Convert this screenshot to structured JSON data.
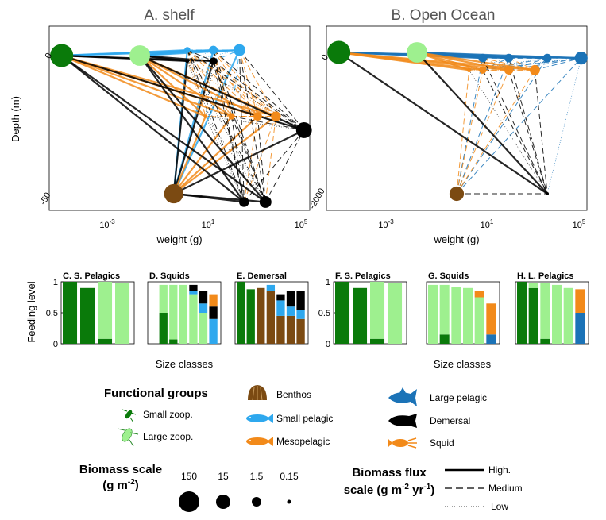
{
  "colors": {
    "small_zoop": "#0a7a0a",
    "large_zoop": "#9ef08f",
    "benthos": "#7b4a12",
    "small_pelagic": "#2ea8ee",
    "mesopelagic": "#f28a1a",
    "large_pelagic": "#1b73b7",
    "demersal": "#000000",
    "squid": "#f28a1a"
  },
  "chart_data": [
    {
      "type": "scatter",
      "title": "A. shelf",
      "xlabel": "weight (g)",
      "ylabel": "Depth (m)",
      "xscale": "log",
      "xlim": [
        1e-05,
        100000
      ],
      "xticks": [
        "10-3",
        "101",
        "105"
      ],
      "yticks": [
        "0",
        "-50"
      ],
      "ylim": [
        -55,
        5
      ],
      "nodes": [
        {
          "group": "small_zoop",
          "weight": 3e-05,
          "depth": 0,
          "biomass": 150
        },
        {
          "group": "large_zoop",
          "weight": 0.03,
          "depth": 0,
          "biomass": 100
        },
        {
          "group": "small_pelagic",
          "weight": 2,
          "depth": 2,
          "biomass": 1.5
        },
        {
          "group": "small_pelagic",
          "weight": 20,
          "depth": 2,
          "biomass": 5
        },
        {
          "group": "small_pelagic",
          "weight": 200,
          "depth": 2,
          "biomass": 15
        },
        {
          "group": "demersal",
          "weight": 2,
          "depth": -2,
          "biomass": 0.3
        },
        {
          "group": "demersal",
          "weight": 20,
          "depth": -2,
          "biomass": 3
        },
        {
          "group": "benthos",
          "weight": 0.6,
          "depth": -50,
          "biomass": 80
        },
        {
          "group": "squid",
          "weight": 10,
          "depth": -22,
          "biomass": 0.3
        },
        {
          "group": "squid",
          "weight": 100,
          "depth": -22,
          "biomass": 2
        },
        {
          "group": "squid",
          "weight": 1000,
          "depth": -22,
          "biomass": 5
        },
        {
          "group": "squid",
          "weight": 5000,
          "depth": -22,
          "biomass": 8
        },
        {
          "group": "demersal",
          "weight": 60000,
          "depth": -27,
          "biomass": 40
        },
        {
          "group": "demersal",
          "weight": 300,
          "depth": -53,
          "biomass": 8
        },
        {
          "group": "demersal",
          "weight": 2000,
          "depth": -53,
          "biomass": 15
        }
      ]
    },
    {
      "type": "scatter",
      "title": "B. Open Ocean",
      "xlabel": "weight (g)",
      "ylabel": "",
      "xscale": "log",
      "xlim": [
        1e-05,
        100000
      ],
      "xticks": [
        "10-3",
        "101",
        "105"
      ],
      "yticks": [
        "0",
        "-2000"
      ],
      "ylim": [
        -2200,
        200
      ],
      "nodes": [
        {
          "group": "small_zoop",
          "weight": 3e-05,
          "depth": 0,
          "biomass": 150
        },
        {
          "group": "large_zoop",
          "weight": 0.03,
          "depth": 0,
          "biomass": 100
        },
        {
          "group": "large_pelagic",
          "weight": 10,
          "depth": -80,
          "biomass": 5
        },
        {
          "group": "large_pelagic",
          "weight": 100,
          "depth": -80,
          "biomass": 5
        },
        {
          "group": "large_pelagic",
          "weight": 3000,
          "depth": -80,
          "biomass": 5
        },
        {
          "group": "large_pelagic",
          "weight": 60000,
          "depth": -80,
          "biomass": 20
        },
        {
          "group": "mesopelagic",
          "weight": 3,
          "depth": -250,
          "biomass": 0.5
        },
        {
          "group": "mesopelagic",
          "weight": 10,
          "depth": -250,
          "biomass": 3
        },
        {
          "group": "mesopelagic",
          "weight": 100,
          "depth": -250,
          "biomass": 6
        },
        {
          "group": "mesopelagic",
          "weight": 1000,
          "depth": -250,
          "biomass": 9
        },
        {
          "group": "benthos",
          "weight": 1,
          "depth": -2000,
          "biomass": 30
        },
        {
          "group": "demersal",
          "weight": 3000,
          "depth": -2000,
          "biomass": 0.15
        }
      ]
    },
    {
      "type": "bar",
      "title": "C. S. Pelagics",
      "stacked": true,
      "xlabel": "Size classes",
      "ylabel": "Feeding level",
      "yticks": [
        "1",
        "0.5",
        "0"
      ],
      "ylim": [
        0,
        1
      ],
      "series_colors": [
        "small_zoop",
        "large_zoop"
      ],
      "bars": [
        [
          1.0,
          0.0
        ],
        [
          0.9,
          0.0
        ],
        [
          0.08,
          0.92
        ],
        [
          0.0,
          0.98
        ]
      ]
    },
    {
      "type": "bar",
      "title": "D. Squids",
      "stacked": true,
      "ylim": [
        0,
        1
      ],
      "series_colors": [
        "small_zoop",
        "large_zoop",
        "small_pelagic",
        "demersal",
        "squid"
      ],
      "bars": [
        [
          0.0,
          0.0,
          0.0,
          0.0,
          0.0
        ],
        [
          0.5,
          0.45,
          0.0,
          0.0,
          0.0
        ],
        [
          0.07,
          0.88,
          0.0,
          0.0,
          0.0
        ],
        [
          0.0,
          0.95,
          0.0,
          0.0,
          0.0
        ],
        [
          0.0,
          0.8,
          0.05,
          0.1,
          0.0
        ],
        [
          0.0,
          0.5,
          0.15,
          0.2,
          0.0
        ],
        [
          0.0,
          0.0,
          0.4,
          0.2,
          0.2
        ]
      ]
    },
    {
      "type": "bar",
      "title": "E. Demersal",
      "stacked": true,
      "ylim": [
        0,
        1
      ],
      "series_colors": [
        "small_zoop",
        "large_zoop",
        "benthos",
        "small_pelagic",
        "demersal"
      ],
      "bars": [
        [
          1.0,
          0.0,
          0.0,
          0.0,
          0.0
        ],
        [
          0.88,
          0.0,
          0.0,
          0.0,
          0.0
        ],
        [
          0.0,
          0.0,
          0.9,
          0.0,
          0.0
        ],
        [
          0.0,
          0.0,
          0.85,
          0.1,
          0.0
        ],
        [
          0.0,
          0.0,
          0.45,
          0.25,
          0.1
        ],
        [
          0.0,
          0.0,
          0.45,
          0.15,
          0.25
        ],
        [
          0.0,
          0.0,
          0.4,
          0.15,
          0.3
        ]
      ]
    },
    {
      "type": "bar",
      "title": "F. S. Pelagics",
      "stacked": true,
      "ylim": [
        0,
        1
      ],
      "series_colors": [
        "small_zoop",
        "large_zoop"
      ],
      "bars": [
        [
          1.0,
          0.0
        ],
        [
          0.9,
          0.0
        ],
        [
          0.08,
          0.92
        ],
        [
          0.0,
          0.98
        ]
      ]
    },
    {
      "type": "bar",
      "title": "G. Squids",
      "stacked": true,
      "ylim": [
        0,
        1
      ],
      "series_colors": [
        "small_zoop",
        "large_zoop",
        "large_pelagic",
        "mesopelagic"
      ],
      "bars": [
        [
          0.0,
          0.95,
          0.0,
          0.0
        ],
        [
          0.15,
          0.8,
          0.0,
          0.0
        ],
        [
          0.0,
          0.92,
          0.0,
          0.0
        ],
        [
          0.0,
          0.9,
          0.0,
          0.0
        ],
        [
          0.0,
          0.75,
          0.0,
          0.1
        ],
        [
          0.0,
          0.0,
          0.15,
          0.5
        ]
      ]
    },
    {
      "type": "bar",
      "title": "H. L. Pelagics",
      "stacked": true,
      "ylim": [
        0,
        1
      ],
      "series_colors": [
        "small_zoop",
        "large_zoop",
        "large_pelagic",
        "mesopelagic"
      ],
      "bars": [
        [
          1.0,
          0.0,
          0.0,
          0.0
        ],
        [
          0.9,
          0.08,
          0.0,
          0.0
        ],
        [
          0.08,
          0.9,
          0.0,
          0.0
        ],
        [
          0.0,
          0.95,
          0.0,
          0.0
        ],
        [
          0.0,
          0.9,
          0.0,
          0.0
        ],
        [
          0.0,
          0.0,
          0.5,
          0.38
        ]
      ]
    }
  ],
  "legend": {
    "functional_title": "Functional groups",
    "groups": [
      {
        "label": "Small zoop.",
        "color": "small_zoop",
        "icon": "zooplankton-icon"
      },
      {
        "label": "Large zoop.",
        "color": "large_zoop",
        "icon": "zooplankton-icon"
      },
      {
        "label": "Benthos",
        "color": "benthos",
        "icon": "shell-icon"
      },
      {
        "label": "Small pelagic",
        "color": "small_pelagic",
        "icon": "fish-icon"
      },
      {
        "label": "Mesopelagic",
        "color": "mesopelagic",
        "icon": "fish-icon"
      },
      {
        "label": "Large pelagic",
        "color": "large_pelagic",
        "icon": "tuna-icon"
      },
      {
        "label": "Demersal",
        "color": "demersal",
        "icon": "cod-icon"
      },
      {
        "label": "Squid",
        "color": "squid",
        "icon": "squid-icon"
      }
    ],
    "biomass_title_1": "Biomass scale",
    "biomass_title_2": "(g m",
    "biomass_title_sup": "-2",
    "biomass_title_end": ")",
    "biomass_values": [
      "150",
      "15",
      "1.5",
      "0.15"
    ],
    "flux_title_1": "Biomass flux",
    "flux_title_2": "scale (g m",
    "flux_title_sup1": "-2",
    "flux_title_mid": " yr",
    "flux_title_sup2": "-1",
    "flux_title_end": ")",
    "flux_levels": [
      "High.",
      "Medium",
      "Low"
    ]
  }
}
